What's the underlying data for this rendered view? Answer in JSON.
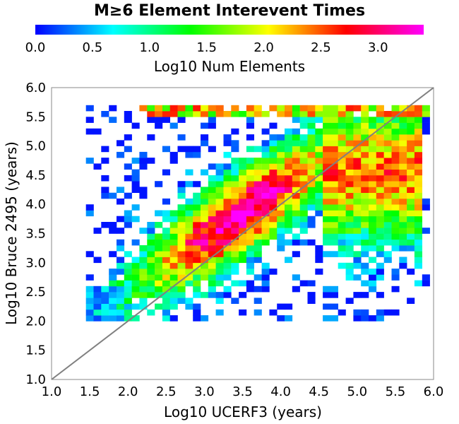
{
  "chart_data": {
    "type": "heatmap",
    "title": "M≥6 Element Interevent Times",
    "xlabel": "Log10 UCERF3 (years)",
    "ylabel": "Log10 Bruce 2495 (years)",
    "xlim": [
      1.0,
      6.0
    ],
    "ylim": [
      1.0,
      6.0
    ],
    "x_ticks": [
      "1.0",
      "1.5",
      "2.0",
      "2.5",
      "3.0",
      "3.5",
      "4.0",
      "4.5",
      "5.0",
      "5.5",
      "6.0"
    ],
    "y_ticks": [
      "1.0",
      "1.5",
      "2.0",
      "2.5",
      "3.0",
      "3.5",
      "4.0",
      "4.5",
      "5.0",
      "5.5",
      "6.0"
    ],
    "bin_size": 0.1,
    "grid": false,
    "reference_line": "y = x",
    "colorbar": {
      "label": "Log10 Num Elements",
      "range": [
        0.0,
        3.4
      ],
      "ticks": [
        "0.0",
        "0.5",
        "1.0",
        "1.5",
        "2.0",
        "2.5",
        "3.0"
      ],
      "stops": [
        "#0000ff",
        "#00ffff",
        "#00ff00",
        "#ffff00",
        "#ff0000",
        "#ff00ff"
      ]
    },
    "density_peak": {
      "x": 3.4,
      "y": 3.8,
      "value": 3.3
    }
  }
}
